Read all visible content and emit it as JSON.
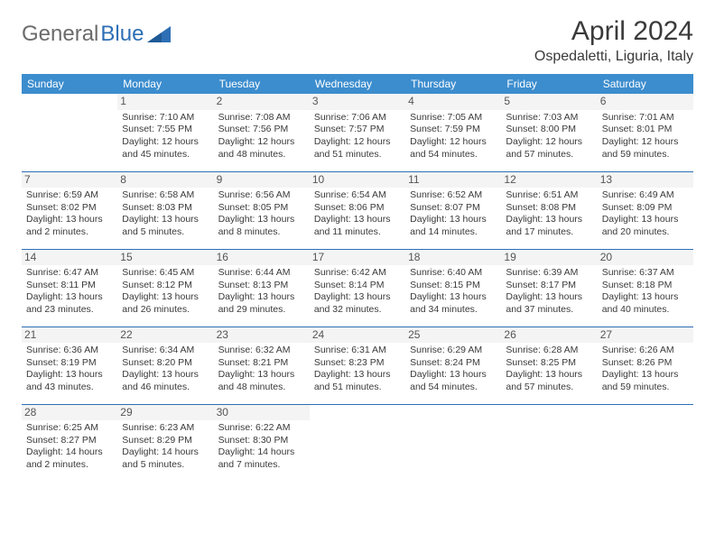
{
  "brand": {
    "first": "General",
    "second": "Blue"
  },
  "title": "April 2024",
  "location": "Ospedaletti, Liguria, Italy",
  "colors": {
    "header_bg": "#3c8dce",
    "header_fg": "#ffffff",
    "border": "#2d6fb5",
    "brand_blue": "#2d6fb5",
    "daynum_bg": "#f4f4f4"
  },
  "day_headers": [
    "Sunday",
    "Monday",
    "Tuesday",
    "Wednesday",
    "Thursday",
    "Friday",
    "Saturday"
  ],
  "weeks": [
    [
      {
        "num": "",
        "sunrise": "",
        "sunset": "",
        "daylight": ""
      },
      {
        "num": "1",
        "sunrise": "Sunrise: 7:10 AM",
        "sunset": "Sunset: 7:55 PM",
        "daylight": "Daylight: 12 hours and 45 minutes."
      },
      {
        "num": "2",
        "sunrise": "Sunrise: 7:08 AM",
        "sunset": "Sunset: 7:56 PM",
        "daylight": "Daylight: 12 hours and 48 minutes."
      },
      {
        "num": "3",
        "sunrise": "Sunrise: 7:06 AM",
        "sunset": "Sunset: 7:57 PM",
        "daylight": "Daylight: 12 hours and 51 minutes."
      },
      {
        "num": "4",
        "sunrise": "Sunrise: 7:05 AM",
        "sunset": "Sunset: 7:59 PM",
        "daylight": "Daylight: 12 hours and 54 minutes."
      },
      {
        "num": "5",
        "sunrise": "Sunrise: 7:03 AM",
        "sunset": "Sunset: 8:00 PM",
        "daylight": "Daylight: 12 hours and 57 minutes."
      },
      {
        "num": "6",
        "sunrise": "Sunrise: 7:01 AM",
        "sunset": "Sunset: 8:01 PM",
        "daylight": "Daylight: 12 hours and 59 minutes."
      }
    ],
    [
      {
        "num": "7",
        "sunrise": "Sunrise: 6:59 AM",
        "sunset": "Sunset: 8:02 PM",
        "daylight": "Daylight: 13 hours and 2 minutes."
      },
      {
        "num": "8",
        "sunrise": "Sunrise: 6:58 AM",
        "sunset": "Sunset: 8:03 PM",
        "daylight": "Daylight: 13 hours and 5 minutes."
      },
      {
        "num": "9",
        "sunrise": "Sunrise: 6:56 AM",
        "sunset": "Sunset: 8:05 PM",
        "daylight": "Daylight: 13 hours and 8 minutes."
      },
      {
        "num": "10",
        "sunrise": "Sunrise: 6:54 AM",
        "sunset": "Sunset: 8:06 PM",
        "daylight": "Daylight: 13 hours and 11 minutes."
      },
      {
        "num": "11",
        "sunrise": "Sunrise: 6:52 AM",
        "sunset": "Sunset: 8:07 PM",
        "daylight": "Daylight: 13 hours and 14 minutes."
      },
      {
        "num": "12",
        "sunrise": "Sunrise: 6:51 AM",
        "sunset": "Sunset: 8:08 PM",
        "daylight": "Daylight: 13 hours and 17 minutes."
      },
      {
        "num": "13",
        "sunrise": "Sunrise: 6:49 AM",
        "sunset": "Sunset: 8:09 PM",
        "daylight": "Daylight: 13 hours and 20 minutes."
      }
    ],
    [
      {
        "num": "14",
        "sunrise": "Sunrise: 6:47 AM",
        "sunset": "Sunset: 8:11 PM",
        "daylight": "Daylight: 13 hours and 23 minutes."
      },
      {
        "num": "15",
        "sunrise": "Sunrise: 6:45 AM",
        "sunset": "Sunset: 8:12 PM",
        "daylight": "Daylight: 13 hours and 26 minutes."
      },
      {
        "num": "16",
        "sunrise": "Sunrise: 6:44 AM",
        "sunset": "Sunset: 8:13 PM",
        "daylight": "Daylight: 13 hours and 29 minutes."
      },
      {
        "num": "17",
        "sunrise": "Sunrise: 6:42 AM",
        "sunset": "Sunset: 8:14 PM",
        "daylight": "Daylight: 13 hours and 32 minutes."
      },
      {
        "num": "18",
        "sunrise": "Sunrise: 6:40 AM",
        "sunset": "Sunset: 8:15 PM",
        "daylight": "Daylight: 13 hours and 34 minutes."
      },
      {
        "num": "19",
        "sunrise": "Sunrise: 6:39 AM",
        "sunset": "Sunset: 8:17 PM",
        "daylight": "Daylight: 13 hours and 37 minutes."
      },
      {
        "num": "20",
        "sunrise": "Sunrise: 6:37 AM",
        "sunset": "Sunset: 8:18 PM",
        "daylight": "Daylight: 13 hours and 40 minutes."
      }
    ],
    [
      {
        "num": "21",
        "sunrise": "Sunrise: 6:36 AM",
        "sunset": "Sunset: 8:19 PM",
        "daylight": "Daylight: 13 hours and 43 minutes."
      },
      {
        "num": "22",
        "sunrise": "Sunrise: 6:34 AM",
        "sunset": "Sunset: 8:20 PM",
        "daylight": "Daylight: 13 hours and 46 minutes."
      },
      {
        "num": "23",
        "sunrise": "Sunrise: 6:32 AM",
        "sunset": "Sunset: 8:21 PM",
        "daylight": "Daylight: 13 hours and 48 minutes."
      },
      {
        "num": "24",
        "sunrise": "Sunrise: 6:31 AM",
        "sunset": "Sunset: 8:23 PM",
        "daylight": "Daylight: 13 hours and 51 minutes."
      },
      {
        "num": "25",
        "sunrise": "Sunrise: 6:29 AM",
        "sunset": "Sunset: 8:24 PM",
        "daylight": "Daylight: 13 hours and 54 minutes."
      },
      {
        "num": "26",
        "sunrise": "Sunrise: 6:28 AM",
        "sunset": "Sunset: 8:25 PM",
        "daylight": "Daylight: 13 hours and 57 minutes."
      },
      {
        "num": "27",
        "sunrise": "Sunrise: 6:26 AM",
        "sunset": "Sunset: 8:26 PM",
        "daylight": "Daylight: 13 hours and 59 minutes."
      }
    ],
    [
      {
        "num": "28",
        "sunrise": "Sunrise: 6:25 AM",
        "sunset": "Sunset: 8:27 PM",
        "daylight": "Daylight: 14 hours and 2 minutes."
      },
      {
        "num": "29",
        "sunrise": "Sunrise: 6:23 AM",
        "sunset": "Sunset: 8:29 PM",
        "daylight": "Daylight: 14 hours and 5 minutes."
      },
      {
        "num": "30",
        "sunrise": "Sunrise: 6:22 AM",
        "sunset": "Sunset: 8:30 PM",
        "daylight": "Daylight: 14 hours and 7 minutes."
      },
      {
        "num": "",
        "sunrise": "",
        "sunset": "",
        "daylight": ""
      },
      {
        "num": "",
        "sunrise": "",
        "sunset": "",
        "daylight": ""
      },
      {
        "num": "",
        "sunrise": "",
        "sunset": "",
        "daylight": ""
      },
      {
        "num": "",
        "sunrise": "",
        "sunset": "",
        "daylight": ""
      }
    ]
  ]
}
